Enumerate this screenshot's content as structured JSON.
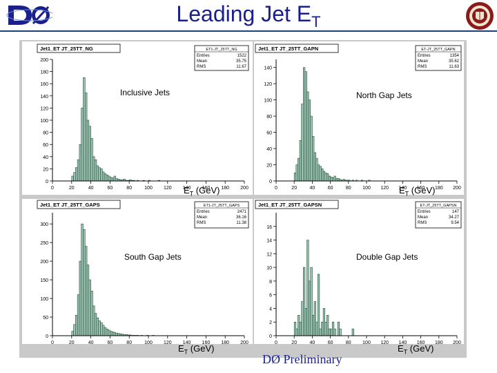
{
  "page": {
    "title_main": "Leading Jet E",
    "title_sub": "T",
    "logo_text": "DØ",
    "preliminary": "DØ Preliminary",
    "xlabel_main": "E",
    "xlabel_sub": "T",
    "xlabel_unit": " (GeV)"
  },
  "chart_data": [
    {
      "type": "bar",
      "hist_title": "Jet1_ET JT_25TT_NG",
      "panel_label": "Inclusive Jets",
      "stats": {
        "name": "ET1-JT_25TT_NG",
        "entries": "1522",
        "mean": "35.75",
        "rms": "11.67"
      },
      "xlim": [
        0,
        200
      ],
      "ylim": [
        0,
        200
      ],
      "yticks": [
        0,
        20,
        40,
        60,
        80,
        100,
        120,
        140,
        160,
        180,
        200
      ],
      "xticks": [
        0,
        20,
        40,
        60,
        80,
        100,
        120,
        140,
        160,
        180,
        200
      ],
      "bin_width": 2,
      "bin_start": 20,
      "values": [
        8,
        14,
        22,
        35,
        60,
        120,
        170,
        145,
        100,
        90,
        70,
        40,
        35,
        25,
        22,
        20,
        15,
        12,
        10,
        8,
        6,
        5,
        8,
        4,
        3,
        2,
        2,
        3,
        1,
        1,
        2,
        1,
        1,
        0,
        1,
        0,
        0,
        1,
        0,
        0,
        1,
        0,
        0,
        0,
        0,
        1
      ]
    },
    {
      "type": "bar",
      "hist_title": "Jet1_ET JT_25TT_GAPN",
      "panel_label": "North Gap Jets",
      "stats": {
        "name": "ET-JT_25TT_GAPN",
        "entries": "1354",
        "mean": "35.62",
        "rms": "11.63"
      },
      "xlim": [
        0,
        200
      ],
      "ylim": [
        0,
        150
      ],
      "yticks": [
        0,
        20,
        40,
        60,
        80,
        100,
        120,
        140
      ],
      "xticks": [
        0,
        20,
        40,
        60,
        80,
        100,
        120,
        140,
        160,
        180,
        200
      ],
      "bin_width": 2,
      "bin_start": 20,
      "values": [
        10,
        20,
        28,
        50,
        95,
        140,
        135,
        110,
        100,
        80,
        55,
        35,
        28,
        20,
        18,
        15,
        12,
        10,
        9,
        6,
        5,
        4,
        6,
        3,
        3,
        2,
        1,
        2,
        1,
        1,
        1,
        0,
        1,
        0,
        1,
        0,
        0,
        1,
        0,
        0,
        0,
        1
      ]
    },
    {
      "type": "bar",
      "hist_title": "Jet1_ET JT_25TT_GAPS",
      "panel_label": "South Gap Jets",
      "stats": {
        "name": "ET1-JT_25TT_GAPS",
        "entries": "2471",
        "mean": "36.16",
        "rms": "11.38"
      },
      "xlim": [
        0,
        200
      ],
      "ylim": [
        0,
        330
      ],
      "yticks": [
        0,
        50,
        100,
        150,
        200,
        250,
        300
      ],
      "xticks": [
        0,
        20,
        40,
        60,
        80,
        100,
        120,
        140,
        160,
        180,
        200
      ],
      "bin_width": 2,
      "bin_start": 20,
      "values": [
        12,
        30,
        55,
        110,
        200,
        300,
        285,
        240,
        190,
        150,
        120,
        80,
        60,
        48,
        40,
        35,
        28,
        22,
        18,
        15,
        12,
        10,
        9,
        7,
        6,
        5,
        4,
        3,
        3,
        2,
        2,
        1,
        1,
        1,
        1,
        0,
        1,
        0,
        0,
        1,
        0,
        0,
        1
      ]
    },
    {
      "type": "bar",
      "hist_title": "Jet1_ET JT_25TT_GAPSN",
      "panel_label": "Double Gap Jets",
      "stats": {
        "name": "ET-JT_25TT_GAPSN",
        "entries": "147",
        "mean": "34.27",
        "rms": "9.54"
      },
      "xlim": [
        0,
        200
      ],
      "ylim": [
        0,
        18
      ],
      "yticks": [
        0,
        2,
        4,
        6,
        8,
        10,
        12,
        14,
        16
      ],
      "xticks": [
        0,
        20,
        40,
        60,
        80,
        100,
        120,
        140,
        160,
        180,
        200
      ],
      "bin_width": 2,
      "bin_start": 20,
      "values": [
        2,
        1,
        3,
        2,
        5,
        10,
        4,
        14,
        8,
        10,
        3,
        5,
        2,
        9,
        1,
        2,
        4,
        2,
        3,
        1,
        1,
        2,
        1,
        0,
        2,
        1,
        0,
        0,
        0,
        0,
        0,
        0,
        1
      ]
    }
  ]
}
